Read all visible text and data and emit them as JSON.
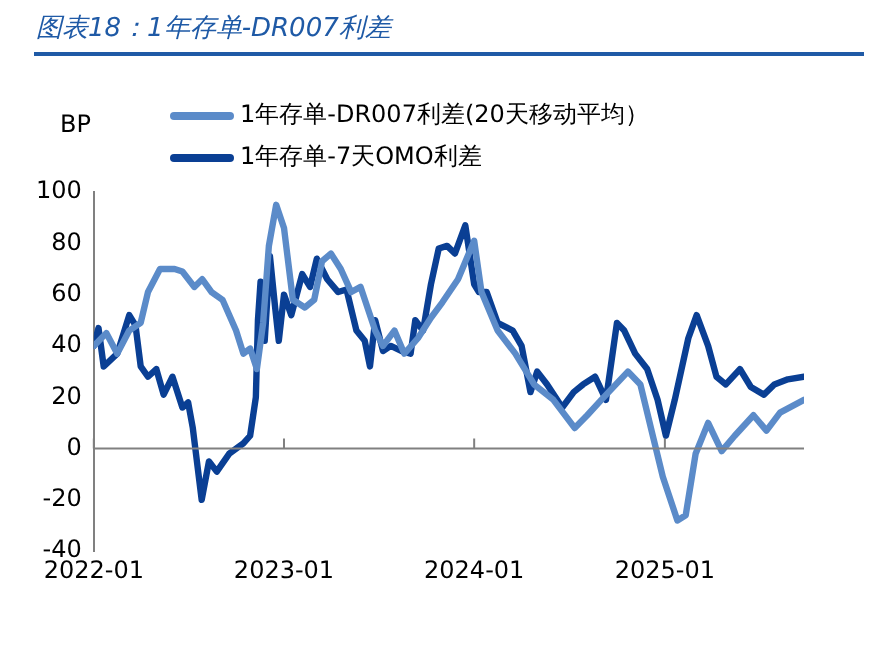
{
  "chart_data": {
    "type": "line",
    "title": "图表18：1年存单-DR007利差",
    "ylabel": "BP",
    "legend": "top",
    "grid": false,
    "marker": "none",
    "line_style": "solid",
    "ref_lines": [
      {
        "axis": "y",
        "value": 0,
        "color": "#808080"
      }
    ],
    "ylim": [
      -40,
      100
    ],
    "yticks": [
      -40,
      -20,
      0,
      20,
      40,
      60,
      80,
      100
    ],
    "xlim": [
      "2022-01-01",
      "2025-09-25"
    ],
    "xticks": [
      {
        "value": "2022-01-01",
        "label": "2022-01"
      },
      {
        "value": "2023-01-01",
        "label": "2023-01"
      },
      {
        "value": "2024-01-01",
        "label": "2024-01"
      },
      {
        "value": "2025-01-01",
        "label": "2025-01"
      }
    ],
    "series": [
      {
        "name": "1年存单-DR007利差(20天移动平均）",
        "color": "#5b8bc9",
        "x": [
          "2022-01-01",
          "2022-01-25",
          "2022-02-15",
          "2022-03-10",
          "2022-04-01",
          "2022-04-15",
          "2022-05-08",
          "2022-06-05",
          "2022-06-20",
          "2022-07-13",
          "2022-07-28",
          "2022-08-15",
          "2022-09-05",
          "2022-10-01",
          "2022-10-15",
          "2022-10-28",
          "2022-11-10",
          "2022-11-22",
          "2022-12-03",
          "2022-12-17",
          "2023-01-01",
          "2023-01-18",
          "2023-02-10",
          "2023-02-28",
          "2023-03-15",
          "2023-04-01",
          "2023-04-20",
          "2023-05-10",
          "2023-05-28",
          "2023-06-25",
          "2023-07-10",
          "2023-08-01",
          "2023-08-20",
          "2023-09-15",
          "2023-10-10",
          "2023-11-01",
          "2023-12-01",
          "2024-01-01",
          "2024-01-15",
          "2024-02-15",
          "2024-03-20",
          "2024-04-25",
          "2024-06-01",
          "2024-07-12",
          "2024-08-05",
          "2024-09-01",
          "2024-10-22",
          "2024-11-15",
          "2024-12-10",
          "2024-12-28",
          "2025-01-25",
          "2025-02-10",
          "2025-03-01",
          "2025-03-25",
          "2025-04-20",
          "2025-05-15",
          "2025-06-20",
          "2025-07-15",
          "2025-08-10",
          "2025-09-25"
        ],
        "values": [
          40,
          45,
          37,
          46,
          49,
          61,
          70,
          70,
          69,
          63,
          66,
          61,
          58,
          46,
          37,
          39,
          31,
          49,
          79,
          95,
          86,
          58,
          55,
          58,
          73,
          76,
          70,
          61,
          63,
          46,
          40,
          46,
          37,
          43,
          51,
          57,
          66,
          81,
          61,
          46,
          37,
          25,
          19,
          8,
          13,
          19,
          30,
          25,
          4,
          -11,
          -28,
          -26,
          -2,
          10,
          -1,
          5,
          13,
          7,
          14,
          19
        ]
      },
      {
        "name": "1年存单-7天OMO利差",
        "color": "#0a3f94",
        "x": [
          "2022-01-01",
          "2022-01-10",
          "2022-01-20",
          "2022-02-15",
          "2022-03-10",
          "2022-03-22",
          "2022-04-01",
          "2022-04-15",
          "2022-05-01",
          "2022-05-15",
          "2022-06-01",
          "2022-06-20",
          "2022-07-01",
          "2022-07-10",
          "2022-07-27",
          "2022-08-10",
          "2022-08-25",
          "2022-09-18",
          "2022-10-15",
          "2022-10-28",
          "2022-11-08",
          "2022-11-12",
          "2022-11-17",
          "2022-11-25",
          "2022-12-05",
          "2022-12-15",
          "2022-12-22",
          "2023-01-01",
          "2023-01-15",
          "2023-02-05",
          "2023-02-20",
          "2023-03-05",
          "2023-03-25",
          "2023-04-15",
          "2023-05-01",
          "2023-05-20",
          "2023-06-05",
          "2023-06-15",
          "2023-06-25",
          "2023-07-10",
          "2023-07-25",
          "2023-08-15",
          "2023-09-01",
          "2023-09-10",
          "2023-09-25",
          "2023-10-10",
          "2023-10-25",
          "2023-11-10",
          "2023-11-25",
          "2023-12-15",
          "2024-01-01",
          "2024-01-10",
          "2024-01-25",
          "2024-02-15",
          "2024-03-15",
          "2024-04-01",
          "2024-04-18",
          "2024-05-01",
          "2024-05-20",
          "2024-06-18",
          "2024-07-10",
          "2024-07-28",
          "2024-08-20",
          "2024-09-10",
          "2024-10-01",
          "2024-10-15",
          "2024-11-05",
          "2024-11-28",
          "2024-12-18",
          "2025-01-03",
          "2025-01-20",
          "2025-02-15",
          "2025-03-03",
          "2025-03-25",
          "2025-04-10",
          "2025-04-28",
          "2025-05-25",
          "2025-06-15",
          "2025-07-10",
          "2025-07-30",
          "2025-08-25",
          "2025-09-25"
        ],
        "values": [
          40,
          47,
          32,
          37,
          52,
          48,
          32,
          28,
          31,
          21,
          28,
          16,
          18,
          8,
          -20,
          -5,
          -9,
          -2,
          2,
          5,
          20,
          50,
          65,
          42,
          75,
          55,
          42,
          60,
          52,
          68,
          63,
          74,
          66,
          61,
          62,
          46,
          42,
          32,
          50,
          38,
          40,
          38,
          37,
          50,
          46,
          64,
          78,
          79,
          76,
          87,
          64,
          61,
          61,
          49,
          46,
          40,
          22,
          30,
          25,
          16,
          22,
          25,
          28,
          19,
          49,
          46,
          37,
          31,
          19,
          5,
          19,
          43,
          52,
          40,
          28,
          25,
          31,
          24,
          21,
          25,
          27,
          28
        ]
      }
    ]
  }
}
